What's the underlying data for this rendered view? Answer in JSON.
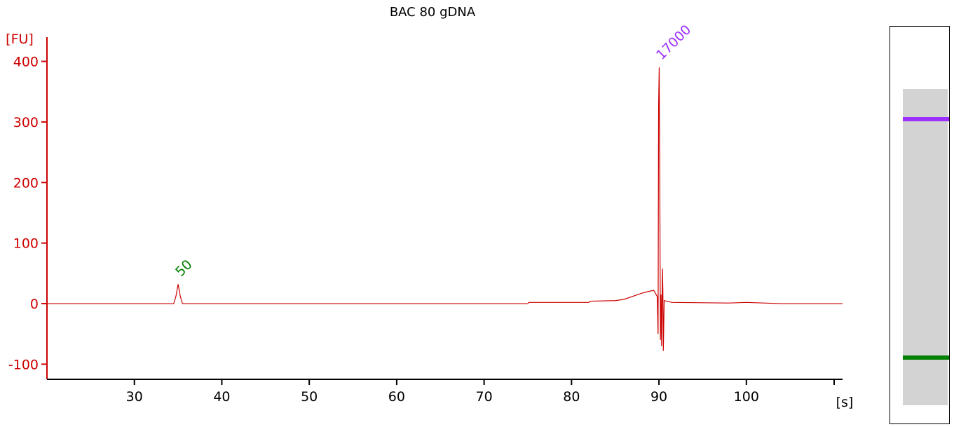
{
  "chart_data": {
    "type": "line",
    "title": "BAC 80 gDNA",
    "ylabel": "[FU]",
    "xlabel": "[s]",
    "xlim": [
      20,
      111
    ],
    "ylim": [
      -125,
      440
    ],
    "xticks": [
      30,
      40,
      50,
      60,
      70,
      80,
      90,
      100
    ],
    "yticks": [
      -100,
      0,
      100,
      200,
      300,
      400
    ],
    "series": [
      {
        "color": "#cc0000",
        "x": [
          20.0,
          34.5,
          34.75,
          35.0,
          35.25,
          35.5,
          36.0,
          75.0,
          75.1,
          82.0,
          82.1,
          85.0,
          86.0,
          87.0,
          88.0,
          88.8,
          89.4,
          89.8,
          89.9,
          89.96,
          90.03,
          90.1,
          90.17,
          90.24,
          90.3,
          90.4,
          90.45,
          90.5,
          90.6,
          91.5,
          98.0,
          100.0,
          102.0,
          104.0,
          111.0
        ],
        "y": [
          0,
          0,
          12,
          32,
          12,
          0,
          0,
          0,
          2,
          2,
          4,
          5,
          7,
          12,
          17,
          20,
          22,
          12,
          -50,
          330,
          390,
          180,
          -60,
          15,
          -70,
          58,
          20,
          -78,
          5,
          2,
          1,
          2,
          1,
          0,
          0
        ]
      }
    ],
    "peaks": [
      {
        "label": "50",
        "x": 35.0,
        "y": 32,
        "color": "#008000"
      },
      {
        "label": "17000",
        "x": 90.0,
        "y": 390,
        "color": "#9b30ff"
      }
    ],
    "grid": false,
    "legend": "none"
  },
  "gel": {
    "bands": [
      {
        "label": "17000",
        "color": "#9b30ff",
        "position": 0.23
      },
      {
        "label": "50",
        "color": "#008000",
        "position": 0.83
      }
    ]
  }
}
